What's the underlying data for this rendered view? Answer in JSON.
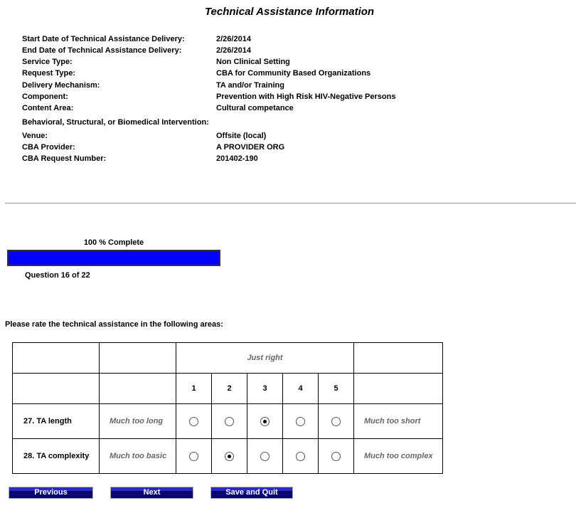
{
  "title": "Technical Assistance Information",
  "info": [
    {
      "label": "Start Date of Technical Assistance Delivery:",
      "value": "2/26/2014"
    },
    {
      "label": "End Date of Technical Assistance Delivery:",
      "value": "2/26/2014"
    },
    {
      "label": "Service Type:",
      "value": "Non Clinical Setting"
    },
    {
      "label": "Request Type:",
      "value": "CBA for Community Based Organizations"
    },
    {
      "label": "Delivery Mechanism:",
      "value": "TA and/or Training"
    },
    {
      "label": "Component:",
      "value": "Prevention with High Risk HIV-Negative Persons"
    },
    {
      "label": "Content Area:",
      "value": "Cultural competance"
    },
    {
      "label": "Behavioral, Structural, or Biomedical Intervention:",
      "value": ""
    },
    {
      "label": "Venue:",
      "value": "Offsite (local)"
    },
    {
      "label": "CBA Provider:",
      "value": "A PROVIDER ORG"
    },
    {
      "label": "CBA Request Number:",
      "value": "201402-190"
    }
  ],
  "progress": {
    "label": "100 % Complete",
    "percent": 100,
    "bar_color": "#0000ff",
    "question": "Question 16 of 22"
  },
  "prompt": "Please rate the technical assistance in the following areas:",
  "table": {
    "header": "Just right",
    "scale": [
      "1",
      "2",
      "3",
      "4",
      "5"
    ],
    "rows": [
      {
        "question": "27. TA length",
        "low": "Much too long",
        "high": "Much too short",
        "selected": 3
      },
      {
        "question": "28. TA complexity",
        "low": "Much too basic",
        "high": "Much too complex",
        "selected": 2
      }
    ]
  },
  "buttons": {
    "previous": "Previous",
    "next": "Next",
    "save": "Save and Quit"
  }
}
